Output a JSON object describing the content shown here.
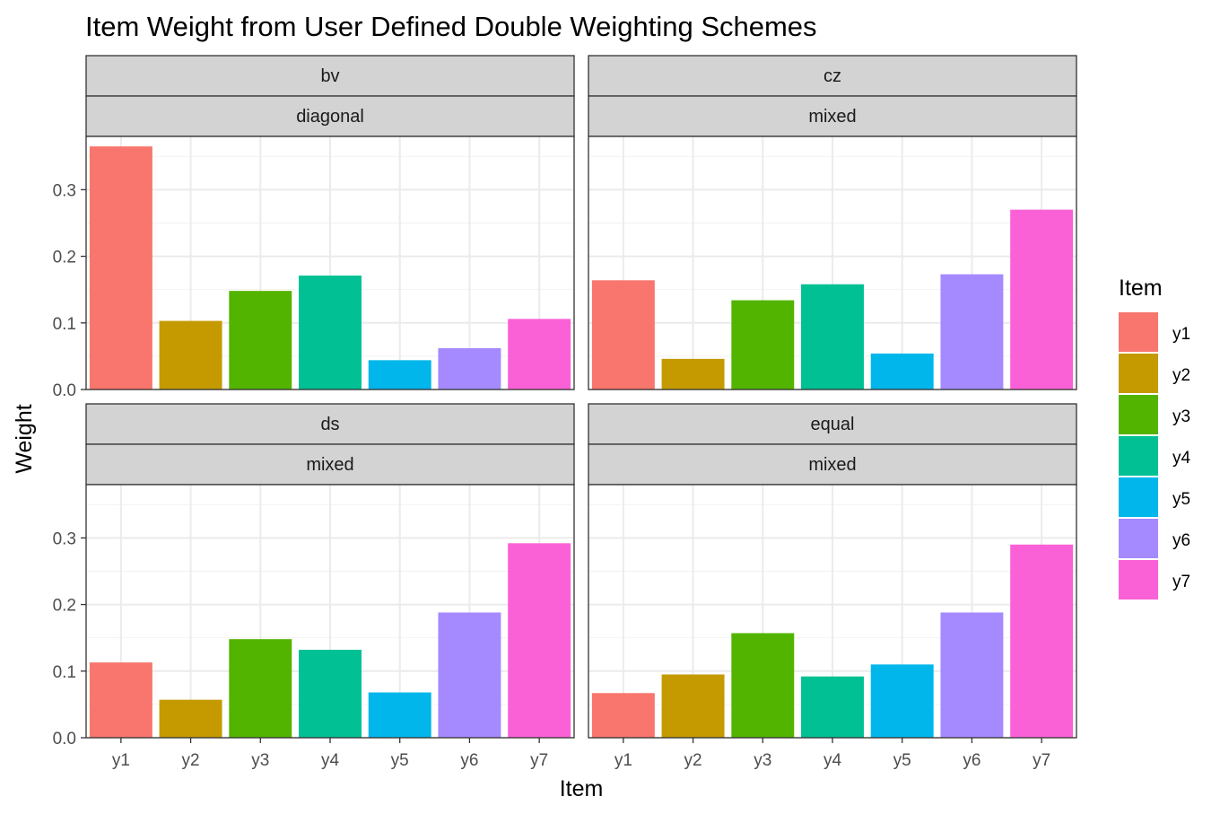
{
  "chart_data": {
    "type": "bar",
    "title": "Item Weight from User Defined Double Weighting Schemes",
    "xlabel": "Item",
    "ylabel": "Weight",
    "categories": [
      "y1",
      "y2",
      "y3",
      "y4",
      "y5",
      "y6",
      "y7"
    ],
    "y_ticks": [
      "0.0",
      "0.1",
      "0.2",
      "0.3"
    ],
    "ylim": [
      0,
      0.38
    ],
    "grid": true,
    "legend": {
      "title": "Item",
      "placement": "right",
      "entries": [
        "y1",
        "y2",
        "y3",
        "y4",
        "y5",
        "y6",
        "y7"
      ]
    },
    "colors": [
      "#F8766D",
      "#C49A00",
      "#53B400",
      "#00C094",
      "#00B6EB",
      "#A58AFF",
      "#FB61D7"
    ],
    "panels": [
      {
        "strip1": "bv",
        "strip2": "diagonal",
        "values": [
          0.365,
          0.103,
          0.148,
          0.171,
          0.044,
          0.062,
          0.106
        ]
      },
      {
        "strip1": "cz",
        "strip2": "mixed",
        "values": [
          0.164,
          0.046,
          0.134,
          0.158,
          0.054,
          0.173,
          0.27
        ]
      },
      {
        "strip1": "ds",
        "strip2": "mixed",
        "values": [
          0.113,
          0.057,
          0.148,
          0.132,
          0.068,
          0.188,
          0.292
        ]
      },
      {
        "strip1": "equal",
        "strip2": "mixed",
        "values": [
          0.067,
          0.095,
          0.157,
          0.092,
          0.11,
          0.188,
          0.29
        ]
      }
    ]
  }
}
